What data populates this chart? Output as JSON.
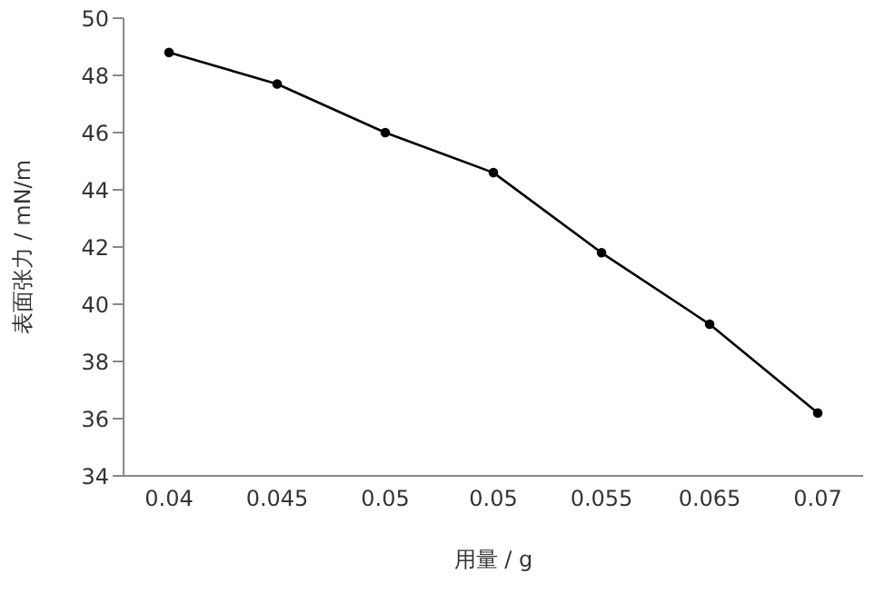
{
  "chart_data": {
    "type": "line",
    "xlabel": "用量 / g",
    "ylabel": "表面张力 / mN/m",
    "categories": [
      "0.04",
      "0.045",
      "0.05",
      "0.05",
      "0.055",
      "0.065",
      "0.07"
    ],
    "series": [
      {
        "color": "#000000",
        "values": [
          48.8,
          47.7,
          46.0,
          44.6,
          41.8,
          39.3,
          36.2
        ]
      }
    ],
    "ylim": [
      34,
      50
    ],
    "yticks": [
      34,
      36,
      38,
      40,
      42,
      44,
      46,
      48,
      50
    ],
    "grid": false,
    "legend": false,
    "marker": "circle",
    "line_style": "solid"
  }
}
